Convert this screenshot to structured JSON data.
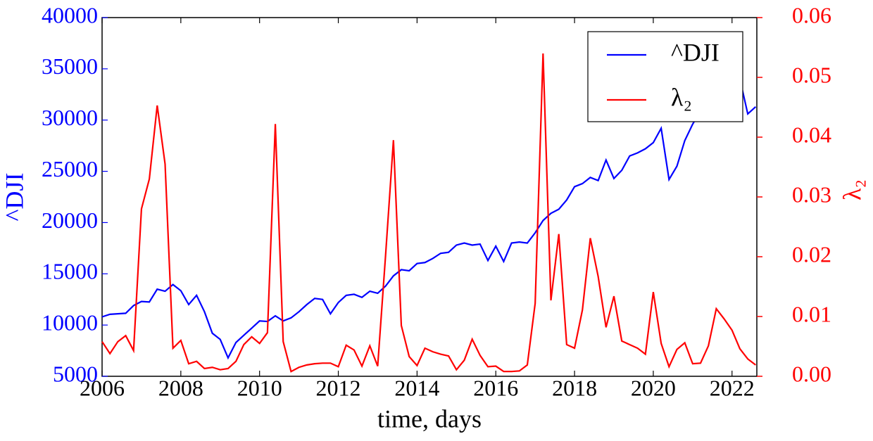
{
  "chart_data": {
    "type": "line",
    "xlabel": "time, days",
    "ylabel": "^DJI",
    "y2label": "λ₂",
    "x": [
      2006,
      2006.2,
      2006.4,
      2006.6,
      2006.8,
      2007,
      2007.2,
      2007.4,
      2007.6,
      2007.8,
      2008,
      2008.2,
      2008.4,
      2008.6,
      2008.8,
      2009,
      2009.2,
      2009.4,
      2009.6,
      2009.8,
      2010,
      2010.2,
      2010.4,
      2010.6,
      2010.8,
      2011,
      2011.2,
      2011.4,
      2011.6,
      2011.8,
      2012,
      2012.2,
      2012.4,
      2012.6,
      2012.8,
      2013,
      2013.2,
      2013.4,
      2013.6,
      2013.8,
      2014,
      2014.2,
      2014.4,
      2014.6,
      2014.8,
      2015,
      2015.2,
      2015.4,
      2015.6,
      2015.8,
      2016,
      2016.2,
      2016.4,
      2016.6,
      2016.8,
      2017,
      2017.2,
      2017.4,
      2017.6,
      2017.8,
      2018,
      2018.2,
      2018.4,
      2018.6,
      2018.8,
      2019,
      2019.2,
      2019.4,
      2019.6,
      2019.8,
      2020,
      2020.2,
      2020.4,
      2020.6,
      2020.8,
      2021,
      2021.2,
      2021.4,
      2021.6,
      2021.8,
      2022,
      2022.2,
      2022.4,
      2022.6
    ],
    "series": [
      {
        "name": "^DJI",
        "color": "#0000ff",
        "axis": "y",
        "values": [
          10800,
          11050,
          11100,
          11150,
          11900,
          12300,
          12250,
          13500,
          13300,
          13950,
          13350,
          12000,
          12900,
          11300,
          9200,
          8600,
          6800,
          8300,
          9000,
          9700,
          10400,
          10350,
          10900,
          10400,
          10700,
          11300,
          12000,
          12600,
          12500,
          11100,
          12200,
          12900,
          13000,
          12700,
          13300,
          13100,
          13800,
          14800,
          15400,
          15300,
          16000,
          16100,
          16500,
          17000,
          17100,
          17800,
          18000,
          17800,
          17900,
          16300,
          17700,
          16200,
          18000,
          18100,
          18000,
          19000,
          20200,
          20900,
          21300,
          22200,
          23500,
          23800,
          24400,
          24100,
          26100,
          24300,
          25100,
          26500,
          26800,
          27200,
          27800,
          29200,
          24200,
          25500,
          28000,
          29600,
          30900,
          31000,
          32500,
          33800,
          34500,
          34000,
          30600,
          31300
        ]
      },
      {
        "name": "λ₂",
        "color": "#ff0000",
        "axis": "y2",
        "values": [
          0.0058,
          0.0038,
          0.0058,
          0.0068,
          0.0043,
          0.028,
          0.033,
          0.0453,
          0.0355,
          0.0047,
          0.006,
          0.0021,
          0.0025,
          0.0013,
          0.0015,
          0.0011,
          0.0013,
          0.0025,
          0.0053,
          0.0066,
          0.0055,
          0.0073,
          0.0422,
          0.0058,
          0.0008,
          0.0015,
          0.0019,
          0.0021,
          0.0022,
          0.0022,
          0.0016,
          0.0052,
          0.0044,
          0.0017,
          0.0051,
          0.0017,
          0.0202,
          0.0395,
          0.0085,
          0.0033,
          0.0018,
          0.0047,
          0.0041,
          0.0037,
          0.0034,
          0.0011,
          0.0027,
          0.0062,
          0.0035,
          0.0016,
          0.0017,
          0.0008,
          0.0008,
          0.0009,
          0.0019,
          0.0122,
          0.054,
          0.0127,
          0.0238,
          0.0053,
          0.0047,
          0.0111,
          0.0231,
          0.0167,
          0.0082,
          0.0134,
          0.0059,
          0.0053,
          0.0047,
          0.0037,
          0.0141,
          0.0055,
          0.0016,
          0.0045,
          0.0056,
          0.0021,
          0.0022,
          0.0051,
          0.0113,
          0.0096,
          0.0077,
          0.0046,
          0.0029,
          0.0019
        ]
      }
    ],
    "xlim": [
      2006,
      2022.63
    ],
    "xticks": [
      2006,
      2008,
      2010,
      2012,
      2014,
      2016,
      2018,
      2020,
      2022
    ],
    "ylim": [
      5000,
      40000
    ],
    "yticks": [
      5000,
      10000,
      15000,
      20000,
      25000,
      30000,
      35000,
      40000
    ],
    "y2lim": [
      0,
      0.06
    ],
    "y2ticks": [
      {
        "value": 0,
        "label": "0.00"
      },
      0.01,
      0.02,
      0.03,
      0.04,
      0.05,
      0.06
    ],
    "legend": "upper right",
    "ycolor": "#0000ff",
    "y2color": "#ff0000"
  }
}
